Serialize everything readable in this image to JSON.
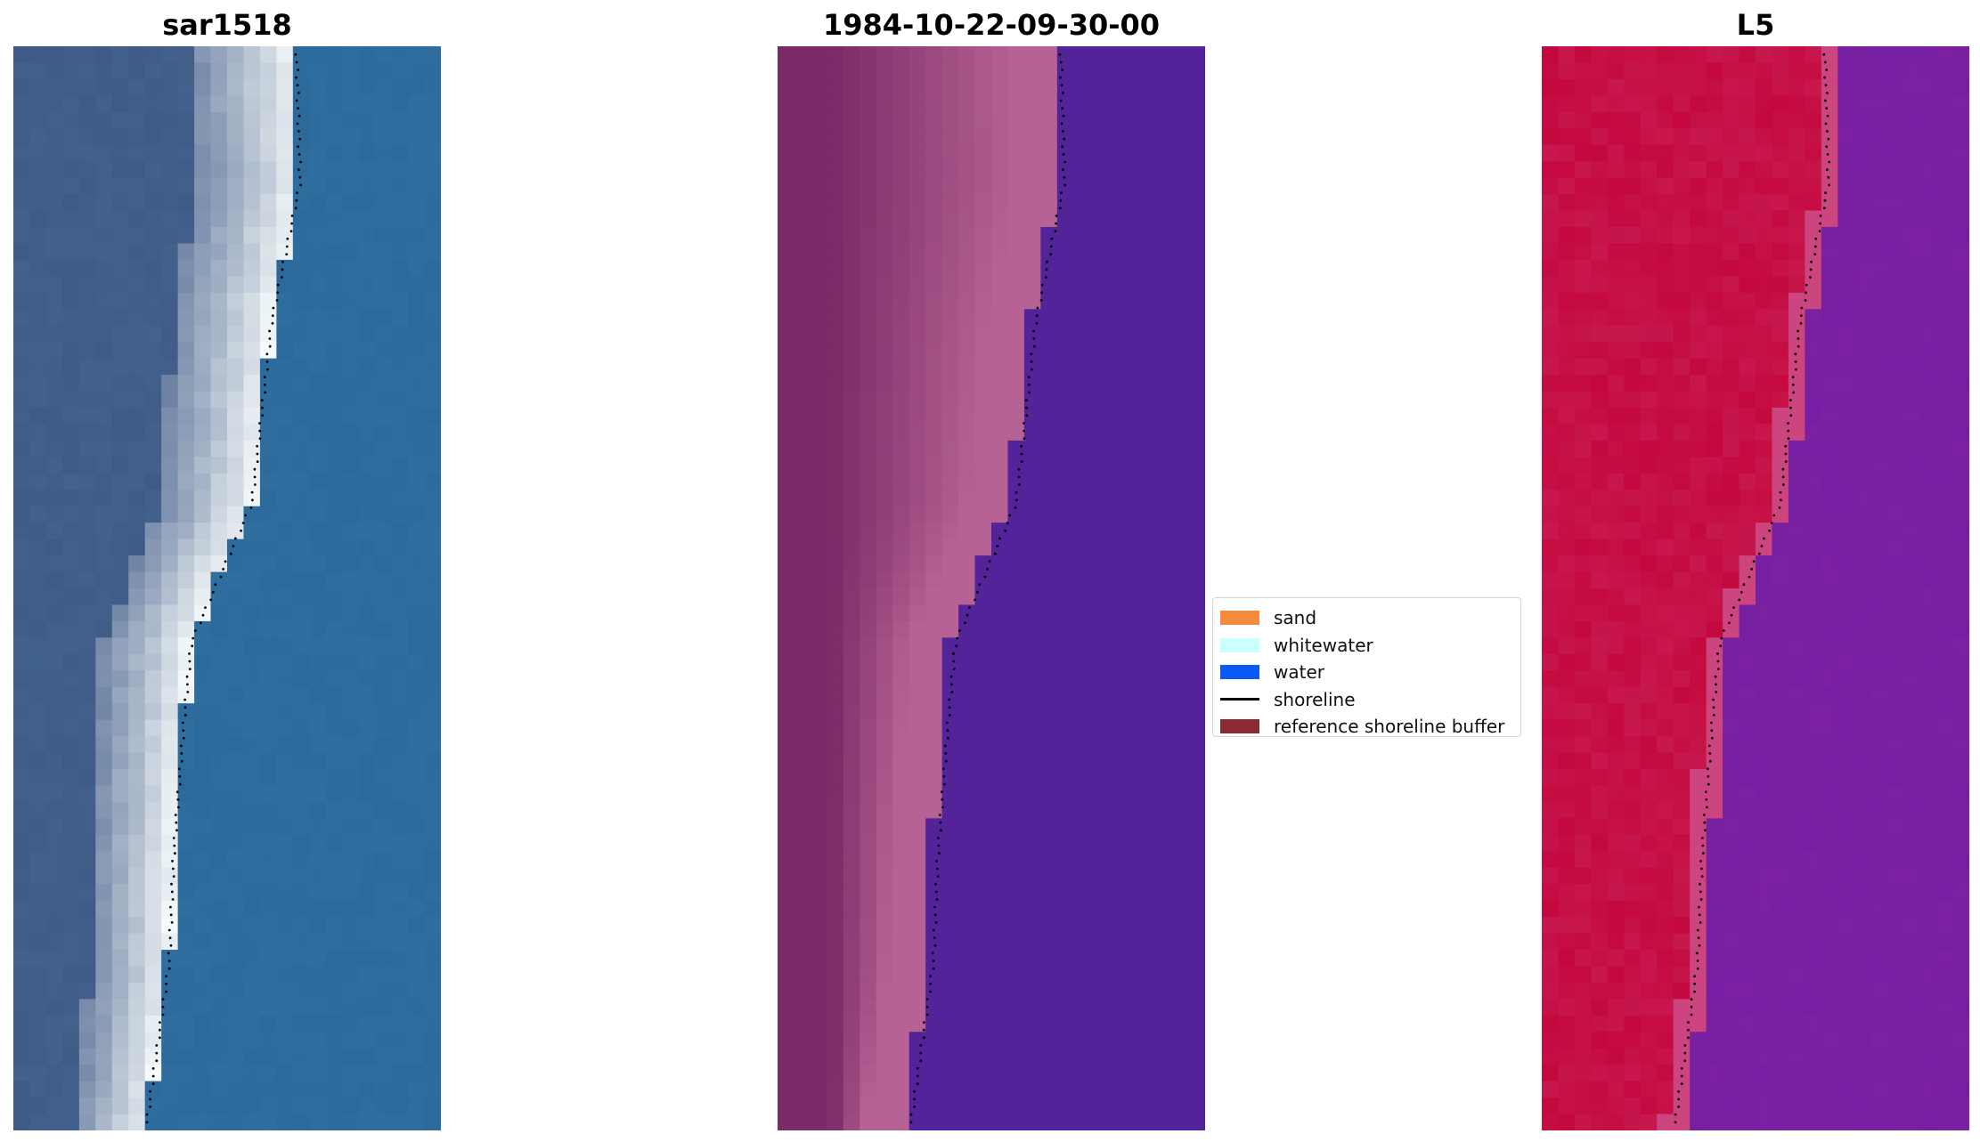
{
  "panels": [
    {
      "id": "a",
      "title": "sar1518",
      "palette": "rgb"
    },
    {
      "id": "b",
      "title": "1984-10-22-09-30-00",
      "palette": "classified"
    },
    {
      "id": "c",
      "title": "L5",
      "palette": "index"
    }
  ],
  "legend": {
    "items": [
      {
        "label": "sand",
        "color": "#f58a3c",
        "kind": "patch"
      },
      {
        "label": "whitewater",
        "color": "#ccffff",
        "kind": "patch"
      },
      {
        "label": "water",
        "color": "#0b58f4",
        "kind": "patch"
      },
      {
        "label": "shoreline",
        "color": "#000000",
        "kind": "line"
      },
      {
        "label": "reference shoreline buffer",
        "color": "#8c2a33",
        "kind": "patch"
      }
    ]
  },
  "colors": {
    "classified_water": "#53239a",
    "classified_land_dark": "#7a2a66",
    "classified_land_light": "#ba6596",
    "index_high": "#c4083e",
    "index_low": "#7a20a0",
    "rgb_water": "#2e6f9f",
    "rgb_land": "#3f5a86",
    "rgb_surf": "#eef3f5",
    "shoreline": "#000000"
  }
}
